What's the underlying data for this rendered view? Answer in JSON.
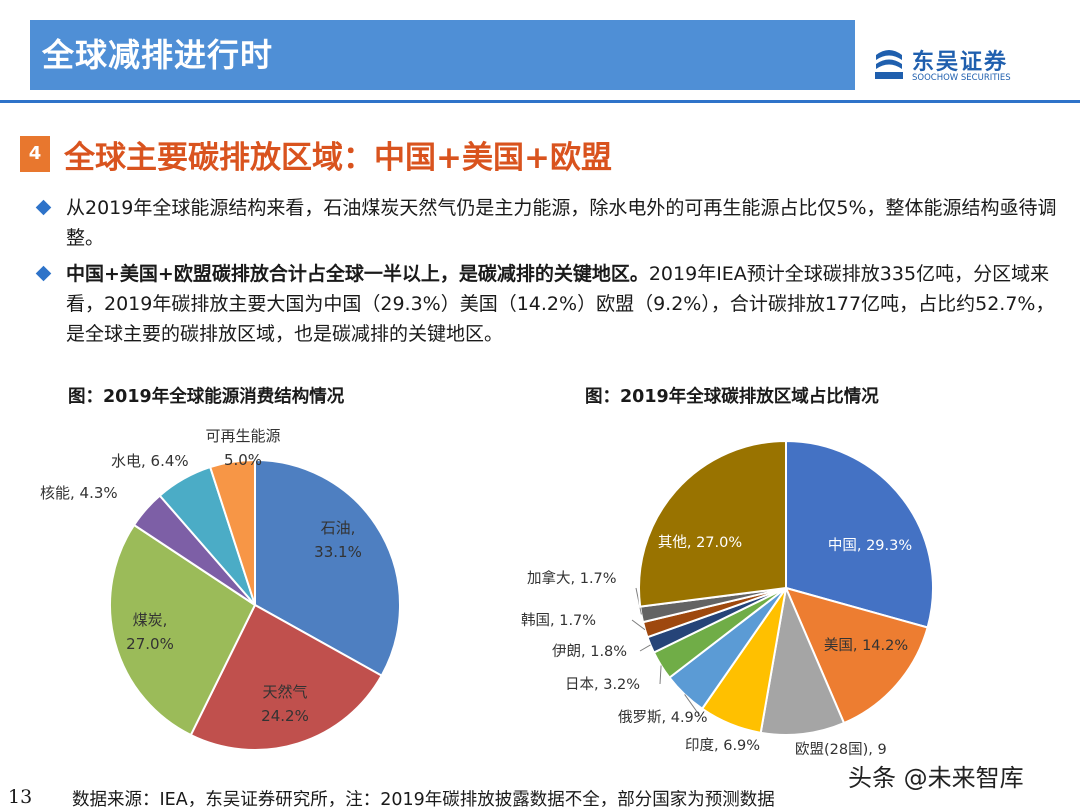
{
  "header": {
    "title": "全球减排进行时"
  },
  "logo": {
    "cn": "东吴证券",
    "en": "SOOCHOW SECURITIES"
  },
  "section": {
    "number": "4",
    "title": "全球主要碳排放区域：中国+美国+欧盟"
  },
  "bullets": [
    {
      "text": "从2019年全球能源结构来看，石油煤炭天然气仍是主力能源，除水电外的可再生能源占比仅5%，整体能源结构亟待调整。"
    },
    {
      "bold": "中国+美国+欧盟碳排放合计占全球一半以上，是碳减排的关键地区。",
      "text": "2019年IEA预计全球碳排放335亿吨，分区域来看，2019年碳排放主要大国为中国（29.3%）美国（14.2%）欧盟（9.2%），合计碳排放177亿吨，占比约52.7%，是全球主要的碳排放区域，也是碳减排的关键地区。"
    }
  ],
  "chart_data": [
    {
      "type": "pie",
      "title": "图：2019年全球能源消费结构情况",
      "slices": [
        {
          "label": "石油",
          "value": 33.1,
          "display": "33.1%",
          "color": "#4e7fc1",
          "label_inside": true
        },
        {
          "label": "天然气",
          "value": 24.2,
          "display": "24.2%",
          "color": "#c0504d",
          "label_inside": true
        },
        {
          "label": "煤炭",
          "value": 27.0,
          "display": "27.0%",
          "color": "#9bbb59",
          "label_inside": true
        },
        {
          "label": "核能",
          "value": 4.3,
          "display": "4.3%",
          "color": "#7d5fa6",
          "label_inside": false
        },
        {
          "label": "水电",
          "value": 6.4,
          "display": "6.4%",
          "color": "#4bacc6",
          "label_inside": false
        },
        {
          "label": "可再生能源",
          "value": 5.0,
          "display": "5.0%",
          "color": "#f79646",
          "label_inside": false
        }
      ]
    },
    {
      "type": "pie",
      "title": "图：2019年全球碳排放区域占比情况",
      "slices": [
        {
          "label": "中国",
          "value": 29.3,
          "display": "29.3%",
          "color": "#4472c4",
          "label_inside": true
        },
        {
          "label": "美国",
          "value": 14.2,
          "display": "14.2%",
          "color": "#ed7d31",
          "label_inside": true
        },
        {
          "label": "欧盟(28国)",
          "value": 9.2,
          "display": "9",
          "color": "#a5a5a5",
          "label_inside": false
        },
        {
          "label": "印度",
          "value": 6.9,
          "display": "6.9%",
          "color": "#ffc000",
          "label_inside": false
        },
        {
          "label": "俄罗斯",
          "value": 4.9,
          "display": "4.9%",
          "color": "#5b9bd5",
          "label_inside": false
        },
        {
          "label": "日本",
          "value": 3.2,
          "display": "3.2%",
          "color": "#70ad47",
          "label_inside": false
        },
        {
          "label": "伊朗",
          "value": 1.8,
          "display": "1.8%",
          "color": "#264478",
          "label_inside": false
        },
        {
          "label": "韩国",
          "value": 1.7,
          "display": "1.7%",
          "color": "#9e480e",
          "label_inside": false
        },
        {
          "label": "加拿大",
          "value": 1.7,
          "display": "1.7%",
          "color": "#636363",
          "label_inside": false
        },
        {
          "label": "其他",
          "value": 27.0,
          "display": "27.0%",
          "color": "#997300",
          "label_inside": true
        }
      ]
    }
  ],
  "footer": {
    "page_number": "13",
    "source": "数据来源：IEA，东吴证券研究所，注：2019年碳排放披露数据不全，部分国家为预测数据"
  },
  "watermark": {
    "text": "头条 @未来智库"
  }
}
